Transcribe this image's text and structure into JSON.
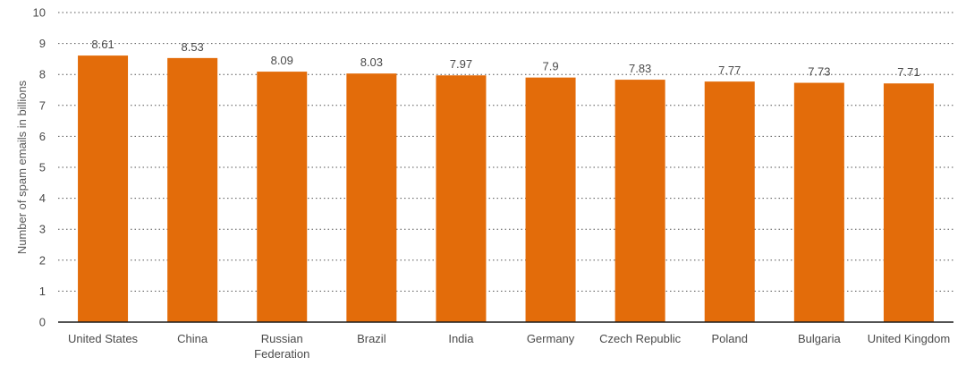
{
  "chart_data": {
    "type": "bar",
    "categories": [
      "United States",
      "China",
      "Russian Federation",
      "Brazil",
      "India",
      "Germany",
      "Czech Republic",
      "Poland",
      "Bulgaria",
      "United Kingdom"
    ],
    "values": [
      8.61,
      8.53,
      8.09,
      8.03,
      7.97,
      7.9,
      7.83,
      7.77,
      7.73,
      7.71
    ],
    "data_labels": [
      "8.61",
      "8.53",
      "8.09",
      "8.03",
      "7.97",
      "7.9",
      "7.83",
      "7.77",
      "7.73",
      "7.71"
    ],
    "title": "",
    "xlabel": "",
    "ylabel": "Number of spam emails in billions",
    "ylim": [
      0,
      10
    ],
    "yticks": [
      0,
      1,
      2,
      3,
      4,
      5,
      6,
      7,
      8,
      9,
      10
    ],
    "grid": true,
    "legend": "none",
    "bar_color": "#e36c0a"
  }
}
